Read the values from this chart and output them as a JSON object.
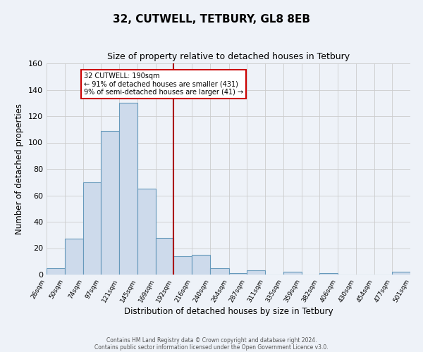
{
  "title": "32, CUTWELL, TETBURY, GL8 8EB",
  "subtitle": "Size of property relative to detached houses in Tetbury",
  "xlabel": "Distribution of detached houses by size in Tetbury",
  "ylabel": "Number of detached properties",
  "bin_edges": [
    26,
    50,
    74,
    97,
    121,
    145,
    169,
    192,
    216,
    240,
    264,
    287,
    311,
    335,
    359,
    382,
    406,
    430,
    454,
    477,
    501
  ],
  "bar_heights": [
    5,
    27,
    70,
    109,
    130,
    65,
    28,
    14,
    15,
    5,
    1,
    3,
    0,
    2,
    0,
    1,
    0,
    0,
    0,
    2
  ],
  "bar_facecolor": "#cddaeb",
  "bar_edgecolor": "#6699bb",
  "vline_x": 192,
  "vline_color": "#aa0000",
  "ylim": [
    0,
    160
  ],
  "grid_color": "#cccccc",
  "annotation_text": "32 CUTWELL: 190sqm\n← 91% of detached houses are smaller (431)\n9% of semi-detached houses are larger (41) →",
  "annotation_box_edgecolor": "#cc0000",
  "annotation_box_facecolor": "#ffffff",
  "footer_line1": "Contains HM Land Registry data © Crown copyright and database right 2024.",
  "footer_line2": "Contains public sector information licensed under the Open Government Licence v3.0.",
  "background_color": "#eef2f8",
  "title_fontsize": 11,
  "subtitle_fontsize": 9,
  "tick_labels": [
    "26sqm",
    "50sqm",
    "74sqm",
    "97sqm",
    "121sqm",
    "145sqm",
    "169sqm",
    "192sqm",
    "216sqm",
    "240sqm",
    "264sqm",
    "287sqm",
    "311sqm",
    "335sqm",
    "359sqm",
    "382sqm",
    "406sqm",
    "430sqm",
    "454sqm",
    "477sqm",
    "501sqm"
  ]
}
